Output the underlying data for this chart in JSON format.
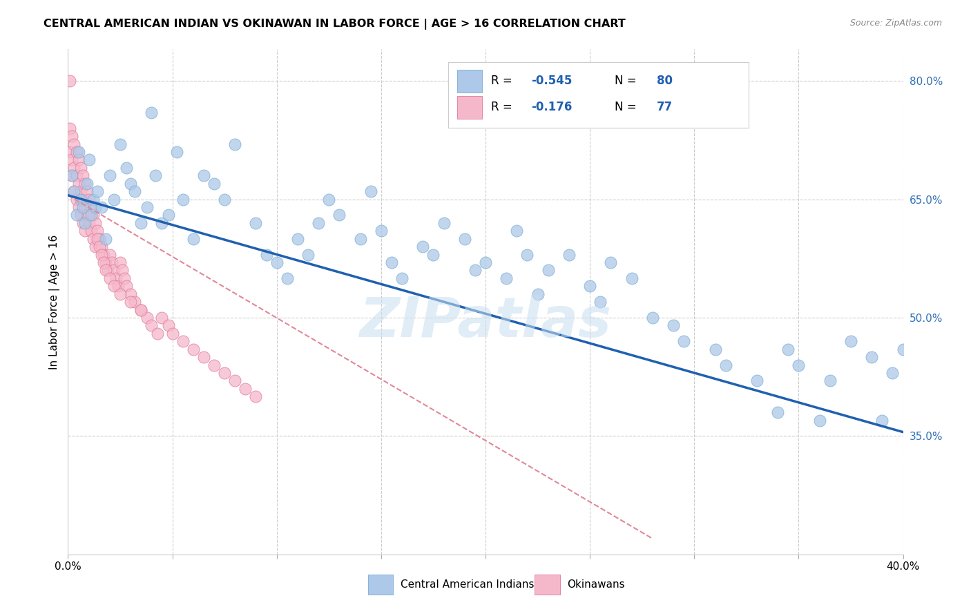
{
  "title": "CENTRAL AMERICAN INDIAN VS OKINAWAN IN LABOR FORCE | AGE > 16 CORRELATION CHART",
  "source": "Source: ZipAtlas.com",
  "ylabel": "In Labor Force | Age > 16",
  "xlim": [
    0.0,
    0.4
  ],
  "ylim": [
    0.2,
    0.84
  ],
  "xtick_positions": [
    0.0,
    0.05,
    0.1,
    0.15,
    0.2,
    0.25,
    0.3,
    0.35,
    0.4
  ],
  "yticks_right": [
    0.35,
    0.5,
    0.65,
    0.8
  ],
  "ytick_labels_right": [
    "35.0%",
    "50.0%",
    "65.0%",
    "80.0%"
  ],
  "blue_color": "#adc8e8",
  "blue_edge_color": "#7aadd4",
  "pink_color": "#f5b8cb",
  "pink_edge_color": "#e07898",
  "blue_line_color": "#2060b0",
  "pink_line_color": "#e08898",
  "legend_label_blue": "Central American Indians",
  "legend_label_pink": "Okinawans",
  "blue_trend_x": [
    0.0,
    0.4
  ],
  "blue_trend_y": [
    0.655,
    0.355
  ],
  "pink_trend_x": [
    0.0,
    0.28
  ],
  "pink_trend_y": [
    0.655,
    0.22
  ],
  "watermark": "ZIPatlas",
  "background_color": "#ffffff",
  "grid_color": "#cccccc",
  "blue_scatter_x": [
    0.002,
    0.003,
    0.004,
    0.005,
    0.006,
    0.007,
    0.008,
    0.009,
    0.01,
    0.011,
    0.012,
    0.013,
    0.014,
    0.016,
    0.018,
    0.02,
    0.022,
    0.025,
    0.028,
    0.03,
    0.032,
    0.035,
    0.038,
    0.04,
    0.042,
    0.045,
    0.048,
    0.052,
    0.055,
    0.06,
    0.065,
    0.07,
    0.075,
    0.08,
    0.09,
    0.095,
    0.1,
    0.105,
    0.11,
    0.115,
    0.12,
    0.125,
    0.13,
    0.14,
    0.145,
    0.15,
    0.155,
    0.16,
    0.17,
    0.175,
    0.18,
    0.19,
    0.195,
    0.2,
    0.21,
    0.215,
    0.22,
    0.225,
    0.23,
    0.24,
    0.25,
    0.255,
    0.26,
    0.27,
    0.28,
    0.29,
    0.295,
    0.31,
    0.315,
    0.33,
    0.34,
    0.345,
    0.35,
    0.36,
    0.365,
    0.375,
    0.385,
    0.39,
    0.395,
    0.4
  ],
  "blue_scatter_y": [
    0.68,
    0.66,
    0.63,
    0.71,
    0.65,
    0.64,
    0.62,
    0.67,
    0.7,
    0.63,
    0.65,
    0.64,
    0.66,
    0.64,
    0.6,
    0.68,
    0.65,
    0.72,
    0.69,
    0.67,
    0.66,
    0.62,
    0.64,
    0.76,
    0.68,
    0.62,
    0.63,
    0.71,
    0.65,
    0.6,
    0.68,
    0.67,
    0.65,
    0.72,
    0.62,
    0.58,
    0.57,
    0.55,
    0.6,
    0.58,
    0.62,
    0.65,
    0.63,
    0.6,
    0.66,
    0.61,
    0.57,
    0.55,
    0.59,
    0.58,
    0.62,
    0.6,
    0.56,
    0.57,
    0.55,
    0.61,
    0.58,
    0.53,
    0.56,
    0.58,
    0.54,
    0.52,
    0.57,
    0.55,
    0.5,
    0.49,
    0.47,
    0.46,
    0.44,
    0.42,
    0.38,
    0.46,
    0.44,
    0.37,
    0.42,
    0.47,
    0.45,
    0.37,
    0.43,
    0.46
  ],
  "pink_scatter_x": [
    0.001,
    0.001,
    0.001,
    0.002,
    0.002,
    0.002,
    0.003,
    0.003,
    0.003,
    0.004,
    0.004,
    0.004,
    0.005,
    0.005,
    0.005,
    0.006,
    0.006,
    0.006,
    0.007,
    0.007,
    0.007,
    0.008,
    0.008,
    0.008,
    0.009,
    0.009,
    0.01,
    0.01,
    0.011,
    0.011,
    0.012,
    0.012,
    0.013,
    0.013,
    0.014,
    0.015,
    0.016,
    0.017,
    0.018,
    0.019,
    0.02,
    0.021,
    0.022,
    0.023,
    0.024,
    0.025,
    0.026,
    0.027,
    0.028,
    0.03,
    0.032,
    0.035,
    0.038,
    0.04,
    0.043,
    0.045,
    0.048,
    0.05,
    0.055,
    0.06,
    0.065,
    0.07,
    0.075,
    0.08,
    0.085,
    0.09,
    0.01,
    0.014,
    0.015,
    0.016,
    0.017,
    0.018,
    0.02,
    0.022,
    0.025,
    0.03,
    0.035
  ],
  "pink_scatter_y": [
    0.8,
    0.74,
    0.71,
    0.73,
    0.7,
    0.68,
    0.72,
    0.69,
    0.66,
    0.71,
    0.68,
    0.65,
    0.7,
    0.67,
    0.64,
    0.69,
    0.66,
    0.63,
    0.68,
    0.65,
    0.62,
    0.67,
    0.64,
    0.61,
    0.66,
    0.63,
    0.65,
    0.62,
    0.64,
    0.61,
    0.63,
    0.6,
    0.62,
    0.59,
    0.61,
    0.6,
    0.59,
    0.58,
    0.57,
    0.56,
    0.58,
    0.57,
    0.56,
    0.55,
    0.54,
    0.57,
    0.56,
    0.55,
    0.54,
    0.53,
    0.52,
    0.51,
    0.5,
    0.49,
    0.48,
    0.5,
    0.49,
    0.48,
    0.47,
    0.46,
    0.45,
    0.44,
    0.43,
    0.42,
    0.41,
    0.4,
    0.63,
    0.6,
    0.59,
    0.58,
    0.57,
    0.56,
    0.55,
    0.54,
    0.53,
    0.52,
    0.51
  ]
}
